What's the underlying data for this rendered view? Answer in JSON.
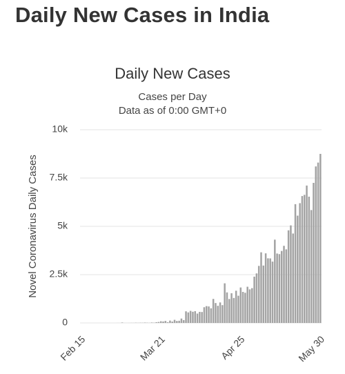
{
  "header": {
    "title": "Daily New Cases in India"
  },
  "chart_data": {
    "type": "bar",
    "title": "Daily New Cases",
    "subtitle": [
      "Cases per Day",
      "Data as of 0:00 GMT+0"
    ],
    "ylabel": "Novel Coronavirus Daily Cases",
    "categories": [
      "Feb 15",
      null,
      null,
      null,
      null,
      null,
      null,
      null,
      null,
      null,
      null,
      null,
      null,
      null,
      null,
      null,
      null,
      null,
      null,
      null,
      null,
      null,
      null,
      null,
      null,
      null,
      null,
      null,
      null,
      null,
      null,
      null,
      null,
      null,
      null,
      "Mar 21",
      null,
      null,
      null,
      null,
      null,
      null,
      null,
      null,
      null,
      null,
      null,
      null,
      null,
      null,
      null,
      null,
      null,
      null,
      null,
      null,
      null,
      null,
      null,
      null,
      null,
      null,
      null,
      null,
      null,
      null,
      null,
      null,
      null,
      null,
      "Apr 25",
      null,
      null,
      null,
      null,
      null,
      null,
      null,
      null,
      null,
      null,
      null,
      null,
      null,
      null,
      null,
      null,
      null,
      null,
      null,
      null,
      null,
      null,
      null,
      null,
      null,
      null,
      null,
      null,
      null,
      null,
      null,
      null,
      null,
      null,
      "May 30"
    ],
    "values": [
      0,
      0,
      0,
      0,
      0,
      0,
      0,
      0,
      0,
      0,
      0,
      0,
      0,
      0,
      0,
      0,
      2,
      1,
      22,
      2,
      1,
      3,
      5,
      4,
      12,
      6,
      11,
      10,
      20,
      11,
      6,
      23,
      14,
      38,
      50,
      86,
      73,
      103,
      37,
      121,
      70,
      160,
      100,
      112,
      227,
      146,
      601,
      545,
      624,
      579,
      609,
      484,
      573,
      565,
      813,
      871,
      854,
      758,
      1243,
      1031,
      886,
      1061,
      922,
      2050,
      1580,
      1239,
      1537,
      1292,
      1667,
      1408,
      1835,
      1607,
      1561,
      1873,
      1738,
      1801,
      2396,
      2564,
      2952,
      3656,
      2971,
      3602,
      3344,
      3339,
      3175,
      4311,
      3592,
      3562,
      3726,
      3991,
      3808,
      4794,
      5049,
      4628,
      6147,
      5553,
      6198,
      6568,
      6629,
      7111,
      6535,
      5843,
      7250,
      8100,
      8300,
      8750
    ],
    "color": "#a3a3a3",
    "ylim": [
      0,
      10000
    ],
    "yticks": [
      0,
      {
        "value": 2500,
        "label": "2.5k"
      },
      {
        "value": 5000,
        "label": "5k"
      },
      {
        "value": 7500,
        "label": "7.5k"
      },
      {
        "value": 10000,
        "label": "10k"
      }
    ],
    "grid": true
  }
}
